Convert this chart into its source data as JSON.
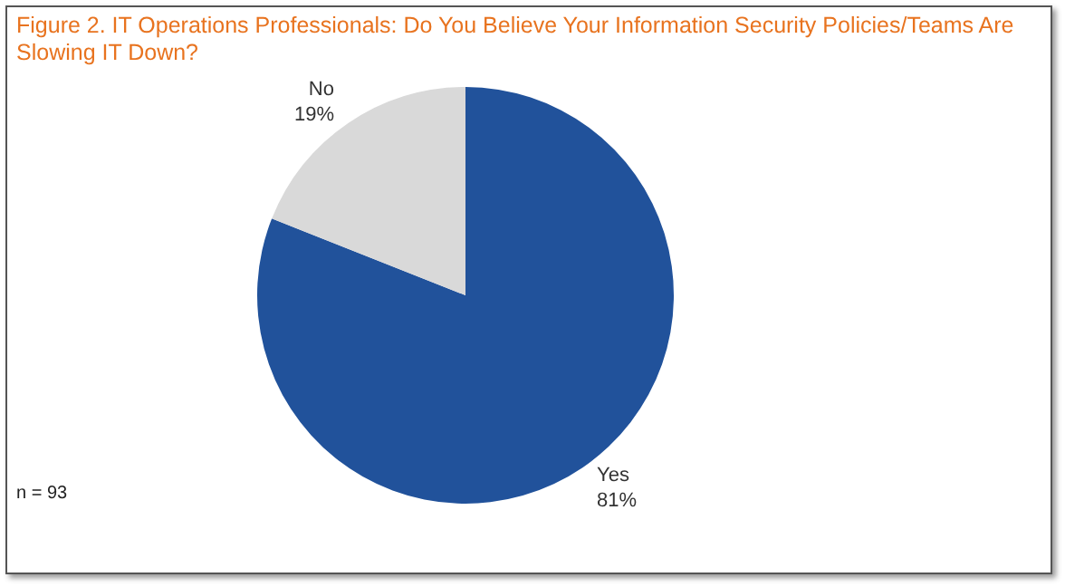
{
  "chart_data": {
    "type": "pie",
    "title": "Figure 2. IT Operations Professionals: Do You Believe Your Information Security Policies/Teams Are Slowing IT Down?",
    "categories": [
      "Yes",
      "No"
    ],
    "values": [
      81,
      19
    ],
    "colors": [
      "#21529b",
      "#d9d9d9"
    ],
    "value_labels": [
      "81%",
      "19%"
    ],
    "legend": false,
    "annotations": [
      "n = 93"
    ]
  }
}
